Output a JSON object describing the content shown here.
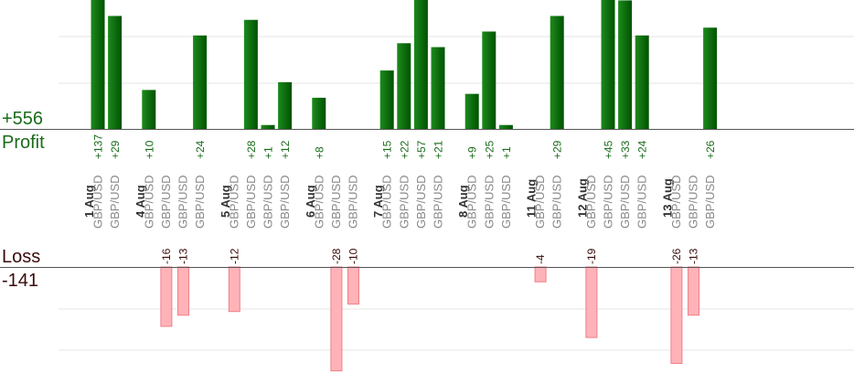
{
  "summary": {
    "profit_total": "+556",
    "profit_label": "Profit",
    "loss_label": "Loss",
    "loss_total": "-141"
  },
  "colors": {
    "profit_text": "#1a6b1a",
    "profit_bar_light": "#1d8a1d",
    "profit_bar_dark": "#005200",
    "loss_text": "#3a0a0a",
    "loss_bar_fill": "#ffb3b8",
    "loss_bar_stroke": "#ee7f86",
    "grid": "#e4e4e4",
    "axis": "#555555",
    "date_text": "#333333",
    "pair_text": "#888888"
  },
  "chart_data": {
    "type": "bar",
    "grid": true,
    "profit_axis_max": 33,
    "loss_axis_max": 30,
    "groups": [
      {
        "date": "1 Aug",
        "trades": [
          {
            "pair": "GBP/USD",
            "label": "+137",
            "value": 137
          },
          {
            "pair": "GBP/USD",
            "label": "+29",
            "value": 29
          }
        ]
      },
      {
        "date": "4 Aug",
        "trades": [
          {
            "pair": "GBP/USD",
            "label": "+10",
            "value": 10
          },
          {
            "pair": "GBP/USD",
            "label": "-16",
            "value": -16
          },
          {
            "pair": "GBP/USD",
            "label": "-13",
            "value": -13
          },
          {
            "pair": "GBP/USD",
            "label": "+24",
            "value": 24
          }
        ]
      },
      {
        "date": "5 Aug",
        "trades": [
          {
            "pair": "GBP/USD",
            "label": "-12",
            "value": -12
          },
          {
            "pair": "GBP/USD",
            "label": "+28",
            "value": 28
          },
          {
            "pair": "GBP/USD",
            "label": "+1",
            "value": 1
          },
          {
            "pair": "GBP/USD",
            "label": "+12",
            "value": 12
          }
        ]
      },
      {
        "date": "6 Aug",
        "trades": [
          {
            "pair": "GBP/USD",
            "label": "+8",
            "value": 8
          },
          {
            "pair": "GBP/USD",
            "label": "-28",
            "value": -28
          },
          {
            "pair": "GBP/USD",
            "label": "-10",
            "value": -10
          }
        ]
      },
      {
        "date": "7 Aug",
        "trades": [
          {
            "pair": "GBP/USD",
            "label": "+15",
            "value": 15
          },
          {
            "pair": "GBP/USD",
            "label": "+22",
            "value": 22
          },
          {
            "pair": "GBP/USD",
            "label": "+57",
            "value": 57
          },
          {
            "pair": "GBP/USD",
            "label": "+21",
            "value": 21
          }
        ]
      },
      {
        "date": "8 Aug",
        "trades": [
          {
            "pair": "GBP/USD",
            "label": "+9",
            "value": 9
          },
          {
            "pair": "GBP/USD",
            "label": "+25",
            "value": 25
          },
          {
            "pair": "GBP/USD",
            "label": "+1",
            "value": 1
          }
        ]
      },
      {
        "date": "11 Aug",
        "trades": [
          {
            "pair": "GBP/USD",
            "label": "-4",
            "value": -4
          },
          {
            "pair": "GBP/USD",
            "label": "+29",
            "value": 29
          }
        ]
      },
      {
        "date": "12 Aug",
        "trades": [
          {
            "pair": "GBP/USD",
            "label": "-19",
            "value": -19
          },
          {
            "pair": "GBP/USD",
            "label": "+45",
            "value": 45
          },
          {
            "pair": "GBP/USD",
            "label": "+33",
            "value": 33
          },
          {
            "pair": "GBP/USD",
            "label": "+24",
            "value": 24
          }
        ]
      },
      {
        "date": "13 Aug",
        "trades": [
          {
            "pair": "GBP/USD",
            "label": "-26",
            "value": -26
          },
          {
            "pair": "GBP/USD",
            "label": "-13",
            "value": -13
          },
          {
            "pair": "GBP/USD",
            "label": "+26",
            "value": 26
          }
        ]
      }
    ]
  }
}
